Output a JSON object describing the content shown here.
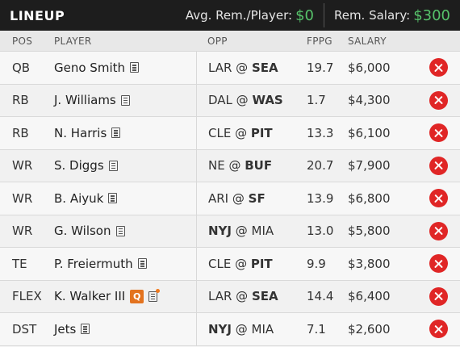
{
  "header": {
    "title": "LINEUP",
    "avg_label": "Avg. Rem./Player:",
    "avg_value": "$0",
    "rem_label": "Rem. Salary:",
    "rem_value": "$300"
  },
  "columns": {
    "pos": "POS",
    "player": "PLAYER",
    "opp": "OPP",
    "fppg": "FPPG",
    "salary": "SALARY"
  },
  "rows": [
    {
      "pos": "QB",
      "player": "Geno Smith",
      "away": "LAR",
      "sep": " @ ",
      "home": "SEA",
      "bold": "home",
      "fppg": "19.7",
      "salary": "$6,000"
    },
    {
      "pos": "RB",
      "player": "J. Williams",
      "away": "DAL",
      "sep": " @ ",
      "home": "WAS",
      "bold": "home",
      "fppg": "1.7",
      "salary": "$4,300"
    },
    {
      "pos": "RB",
      "player": "N. Harris",
      "away": "CLE",
      "sep": " @ ",
      "home": "PIT",
      "bold": "home",
      "fppg": "13.3",
      "salary": "$6,100"
    },
    {
      "pos": "WR",
      "player": "S. Diggs",
      "away": "NE",
      "sep": " @ ",
      "home": "BUF",
      "bold": "home",
      "fppg": "20.7",
      "salary": "$7,900"
    },
    {
      "pos": "WR",
      "player": "B. Aiyuk",
      "away": "ARI",
      "sep": " @ ",
      "home": "SF",
      "bold": "home",
      "fppg": "13.9",
      "salary": "$6,800"
    },
    {
      "pos": "WR",
      "player": "G. Wilson",
      "away": "NYJ",
      "sep": " @ ",
      "home": "MIA",
      "bold": "away",
      "fppg": "13.0",
      "salary": "$5,800"
    },
    {
      "pos": "TE",
      "player": "P. Freiermuth",
      "away": "CLE",
      "sep": " @ ",
      "home": "PIT",
      "bold": "home",
      "fppg": "9.9",
      "salary": "$3,800"
    },
    {
      "pos": "FLEX",
      "player": "K. Walker III",
      "badge": "Q",
      "away": "LAR",
      "sep": " @ ",
      "home": "SEA",
      "bold": "home",
      "fppg": "14.4",
      "salary": "$6,400"
    },
    {
      "pos": "DST",
      "player": "Jets",
      "away": "NYJ",
      "sep": " @ ",
      "home": "MIA",
      "bold": "away",
      "fppg": "7.1",
      "salary": "$2,600"
    }
  ],
  "colors": {
    "accent_green": "#56c26a",
    "remove_red": "#e02626",
    "questionable_orange": "#e3731f"
  },
  "icons": {
    "news": "news-note-icon",
    "remove": "remove-x-icon"
  }
}
